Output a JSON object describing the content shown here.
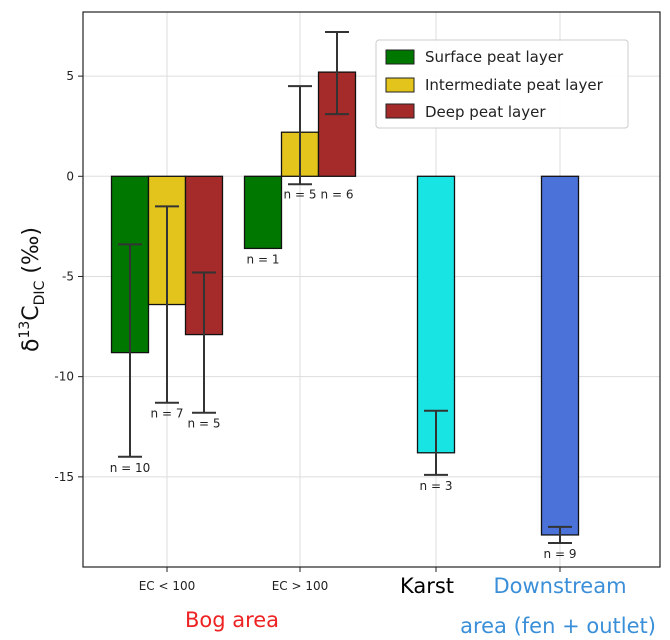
{
  "chart_data": {
    "type": "bar",
    "ylabel_base": "δ",
    "ylabel_sup": "13",
    "ylabel_main": "C",
    "ylabel_sub": "DIC",
    "ylabel_unit": " (‰)",
    "ylim": [
      -19.5,
      8.2
    ],
    "yticks": [
      5,
      0,
      -5,
      -10,
      -15
    ],
    "ytick_labels": [
      "5",
      "0",
      "-5",
      "-10",
      "-15"
    ],
    "grid": true,
    "legend_position": "top-right",
    "categories": [
      "EC < 100",
      "EC > 100",
      "Karst",
      "Downstream"
    ],
    "category_groups": [
      {
        "label": "Bog area",
        "color": "#ee2222"
      },
      {
        "label": "Karst",
        "color": "#000000"
      },
      {
        "label": "Downstream",
        "label2": "area (fen + outlet)",
        "color": "#3a8fd8"
      }
    ],
    "series": [
      {
        "name": "Surface peat layer",
        "color": "#007800",
        "bars": [
          {
            "category": "EC < 100",
            "value": -8.8,
            "err_low": -14.0,
            "err_high": -3.4,
            "n": "n = 10"
          },
          {
            "category": "EC > 100",
            "value": -3.6,
            "err_low": null,
            "err_high": null,
            "n": "n = 1"
          }
        ]
      },
      {
        "name": "Intermediate peat layer",
        "color": "#e3c41c",
        "bars": [
          {
            "category": "EC < 100",
            "value": -6.4,
            "err_low": -11.3,
            "err_high": -1.5,
            "n": "n = 7"
          },
          {
            "category": "EC > 100",
            "value": 2.2,
            "err_low": -0.4,
            "err_high": 4.5,
            "n": "n = 5"
          }
        ]
      },
      {
        "name": "Deep peat layer",
        "color": "#a52a2a",
        "bars": [
          {
            "category": "EC < 100",
            "value": -7.9,
            "err_low": -11.8,
            "err_high": -4.8,
            "n": "n = 5"
          },
          {
            "category": "EC > 100",
            "value": 5.2,
            "err_low": 3.1,
            "err_high": 7.2,
            "n": "n = 6"
          }
        ]
      },
      {
        "name": "",
        "color": "#18e4e4",
        "bars": [
          {
            "category": "Karst",
            "value": -13.8,
            "err_low": -14.9,
            "err_high": -11.7,
            "n": "n = 3"
          }
        ]
      },
      {
        "name": "",
        "color": "#4a72d8",
        "bars": [
          {
            "category": "Downstream",
            "value": -17.9,
            "err_low": -18.3,
            "err_high": -17.5,
            "n": "n = 9"
          }
        ]
      }
    ]
  }
}
